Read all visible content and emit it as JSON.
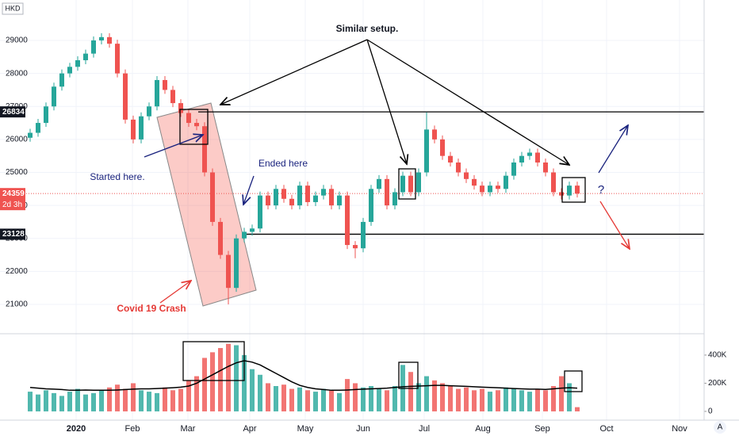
{
  "chart_data": [
    {
      "type": "candlestick",
      "currency": "HKD",
      "up_color": "#26a69a",
      "down_color": "#ef5350",
      "grid": true,
      "x": [
        0,
        1,
        2,
        3,
        4,
        5,
        6,
        7,
        8,
        9,
        10,
        11,
        12,
        13,
        14,
        15,
        16,
        17,
        18,
        19,
        20,
        21,
        22,
        23,
        24,
        25,
        26,
        27,
        28,
        29,
        30,
        31,
        32,
        33,
        34,
        35,
        36,
        37,
        38,
        39,
        40,
        41,
        42,
        43,
        44,
        45,
        46,
        47,
        48,
        49,
        50,
        51,
        52,
        53,
        54,
        55,
        56,
        57,
        58,
        59,
        60,
        61,
        62,
        63,
        64,
        65,
        66,
        67,
        68,
        69
      ],
      "open": [
        26050,
        26200,
        26500,
        27000,
        27600,
        28000,
        28200,
        28400,
        28600,
        29000,
        29100,
        28900,
        28000,
        26600,
        26000,
        26700,
        27000,
        27800,
        27500,
        27100,
        26800,
        26500,
        26400,
        25000,
        23500,
        22500,
        21500,
        23000,
        23200,
        23300,
        24300,
        24000,
        24500,
        24200,
        24000,
        24600,
        24100,
        24300,
        24500,
        24000,
        24300,
        22800,
        22700,
        23500,
        24500,
        24800,
        24000,
        24400,
        24900,
        24400,
        25000,
        26300,
        26000,
        25500,
        25300,
        25000,
        24800,
        24600,
        24400,
        24600,
        24500,
        24900,
        25300,
        25500,
        25600,
        25300,
        25000,
        24400,
        24300,
        24600
      ],
      "high": [
        26320,
        26620,
        27120,
        27720,
        28120,
        28320,
        28520,
        28720,
        29120,
        29220,
        29220,
        29020,
        28120,
        26720,
        26820,
        27120,
        27920,
        27920,
        27620,
        27220,
        26920,
        26620,
        26520,
        25120,
        23620,
        22620,
        23120,
        23320,
        23420,
        24420,
        24420,
        24620,
        24620,
        24320,
        24720,
        24720,
        24420,
        24620,
        24620,
        24420,
        24420,
        22920,
        23620,
        24620,
        24920,
        24920,
        24520,
        25020,
        25020,
        25120,
        26820,
        26420,
        26120,
        25620,
        25420,
        25120,
        24920,
        24720,
        24720,
        24720,
        25020,
        25420,
        25620,
        25720,
        25720,
        25420,
        25120,
        24520,
        24720,
        24720
      ],
      "low": [
        25930,
        26080,
        26380,
        26880,
        27480,
        27880,
        28080,
        28280,
        28480,
        28880,
        28780,
        27880,
        26480,
        25880,
        25880,
        26580,
        26880,
        27380,
        26980,
        26680,
        26380,
        26280,
        24880,
        23380,
        22380,
        21000,
        21380,
        22880,
        23080,
        23180,
        23880,
        23880,
        24080,
        23880,
        23880,
        23980,
        23980,
        24180,
        23880,
        23880,
        22680,
        22400,
        22580,
        23380,
        24380,
        23880,
        23880,
        24280,
        24280,
        24280,
        24880,
        25880,
        25380,
        25180,
        24880,
        24680,
        24480,
        24280,
        24280,
        24380,
        24380,
        24780,
        25180,
        25380,
        25180,
        24880,
        24280,
        24180,
        24180,
        24239
      ],
      "close": [
        26200,
        26500,
        27000,
        27600,
        28000,
        28200,
        28400,
        28600,
        29000,
        29100,
        28900,
        28000,
        26600,
        26000,
        26700,
        27000,
        27800,
        27500,
        27100,
        26800,
        26500,
        26400,
        25000,
        23500,
        22500,
        21500,
        23000,
        23200,
        23300,
        24300,
        24000,
        24500,
        24200,
        24000,
        24600,
        24100,
        24300,
        24500,
        24000,
        24300,
        22800,
        22700,
        23500,
        24500,
        24800,
        24000,
        24400,
        24900,
        24400,
        25000,
        26300,
        26000,
        25500,
        25300,
        25000,
        24800,
        24600,
        24400,
        24600,
        24500,
        24900,
        25300,
        25500,
        25600,
        25300,
        25000,
        24400,
        24300,
        24600,
        24359
      ],
      "xlim": [
        -3.8,
        85
      ],
      "xticks": [
        {
          "value": 5.8,
          "label": "2020"
        },
        {
          "value": 12.9,
          "label": "Feb"
        },
        {
          "value": 19.9,
          "label": "Mar"
        },
        {
          "value": 27.7,
          "label": "Apr"
        },
        {
          "value": 34.7,
          "label": "May"
        },
        {
          "value": 42,
          "label": "Jun"
        },
        {
          "value": 49.7,
          "label": "Jul"
        },
        {
          "value": 57.1,
          "label": "Aug"
        },
        {
          "value": 64.6,
          "label": "Sep"
        },
        {
          "value": 72.7,
          "label": "Oct"
        },
        {
          "value": 81.9,
          "label": "Nov"
        }
      ],
      "ylim": [
        20135,
        30225
      ],
      "yticks": [
        29000,
        28000,
        27000,
        26000,
        25000,
        24000,
        23000,
        22000,
        21000
      ],
      "hlines": [
        26834,
        23128
      ],
      "last_price": 24359,
      "countdown": "2d 3h",
      "annotations": [
        "Similar setup.",
        "Started here.",
        "Ended here",
        "Covid 19 Crash",
        "?"
      ]
    },
    {
      "type": "bar",
      "name": "volume",
      "values": [
        140,
        120,
        150,
        130,
        110,
        140,
        160,
        120,
        130,
        150,
        170,
        190,
        160,
        200,
        150,
        140,
        130,
        170,
        150,
        160,
        220,
        250,
        380,
        420,
        450,
        480,
        470,
        400,
        300,
        260,
        200,
        180,
        190,
        160,
        170,
        150,
        140,
        160,
        150,
        130,
        230,
        200,
        170,
        180,
        160,
        150,
        180,
        330,
        280,
        200,
        250,
        220,
        200,
        180,
        160,
        170,
        150,
        160,
        140,
        150,
        170,
        160,
        150,
        140,
        160,
        150,
        180,
        250,
        200,
        30
      ],
      "ma": [
        170,
        165,
        160,
        158,
        155,
        150,
        150,
        152,
        150,
        150,
        150,
        152,
        155,
        158,
        160,
        160,
        162,
        165,
        168,
        172,
        180,
        200,
        230,
        260,
        290,
        320,
        345,
        360,
        350,
        330,
        300,
        270,
        240,
        210,
        185,
        170,
        160,
        155,
        150,
        150,
        152,
        155,
        158,
        160,
        162,
        165,
        170,
        175,
        178,
        180,
        182,
        185,
        185,
        182,
        180,
        178,
        175,
        172,
        170,
        168,
        165,
        162,
        160,
        158,
        158,
        156,
        160,
        165,
        168,
        165
      ],
      "ma_color": "#000000",
      "ylim": [
        -51,
        546
      ],
      "yticks": [
        {
          "value": 400,
          "label": "400K"
        },
        {
          "value": 200,
          "label": "200K"
        },
        0
      ]
    }
  ],
  "ui": {
    "auto_scale": "A"
  }
}
